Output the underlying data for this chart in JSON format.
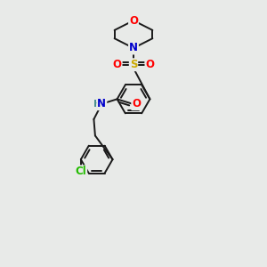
{
  "background_color": "#e8eae8",
  "bond_color": "#1a1a1a",
  "bond_width": 1.4,
  "atom_colors": {
    "O": "#ff0000",
    "N": "#0000cc",
    "S": "#ccaa00",
    "Cl": "#22bb00",
    "H": "#4a9090"
  },
  "font_size": 8.5,
  "fig_w": 3.0,
  "fig_h": 3.0,
  "dpi": 100
}
